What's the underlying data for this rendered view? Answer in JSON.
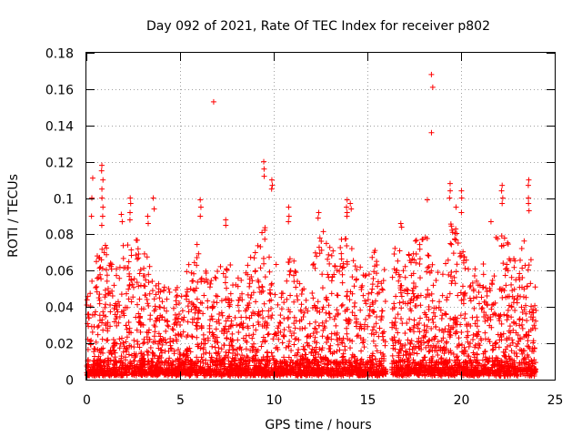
{
  "chart_data": {
    "type": "scatter",
    "title": "Day 092 of 2021, Rate Of TEC Index for receiver p802",
    "xlabel": "GPS time / hours",
    "ylabel": "ROTI / TECUs",
    "xlim": [
      0,
      25
    ],
    "ylim": [
      0,
      0.18
    ],
    "xticks": [
      0,
      5,
      10,
      15,
      20,
      25
    ],
    "xtick_labels": [
      "0",
      "5",
      "10",
      "15",
      "20",
      "25"
    ],
    "yticks": [
      0,
      0.02,
      0.04,
      0.06,
      0.08,
      0.1,
      0.12,
      0.14,
      0.16,
      0.18
    ],
    "ytick_labels": [
      "0",
      "0.02",
      "0.04",
      "0.06",
      "0.08",
      "0.1",
      "0.12",
      "0.14",
      "0.16",
      "0.18"
    ],
    "grid": true,
    "marker": "+",
    "color": "#ff0000",
    "data_gap_hours": [
      16.0,
      16.3
    ],
    "envelope": [
      {
        "t": 0.0,
        "max": 0.045
      },
      {
        "t": 0.5,
        "max": 0.07
      },
      {
        "t": 1.0,
        "max": 0.075
      },
      {
        "t": 1.5,
        "max": 0.06
      },
      {
        "t": 2.0,
        "max": 0.075
      },
      {
        "t": 2.5,
        "max": 0.085
      },
      {
        "t": 3.0,
        "max": 0.075
      },
      {
        "t": 3.5,
        "max": 0.06
      },
      {
        "t": 4.0,
        "max": 0.05
      },
      {
        "t": 4.5,
        "max": 0.06
      },
      {
        "t": 5.0,
        "max": 0.05
      },
      {
        "t": 5.5,
        "max": 0.065
      },
      {
        "t": 6.0,
        "max": 0.08
      },
      {
        "t": 6.5,
        "max": 0.055
      },
      {
        "t": 7.0,
        "max": 0.06
      },
      {
        "t": 7.5,
        "max": 0.07
      },
      {
        "t": 8.0,
        "max": 0.055
      },
      {
        "t": 8.5,
        "max": 0.065
      },
      {
        "t": 9.0,
        "max": 0.07
      },
      {
        "t": 9.5,
        "max": 0.085
      },
      {
        "t": 10.0,
        "max": 0.07
      },
      {
        "t": 10.5,
        "max": 0.055
      },
      {
        "t": 11.0,
        "max": 0.075
      },
      {
        "t": 11.5,
        "max": 0.05
      },
      {
        "t": 12.0,
        "max": 0.06
      },
      {
        "t": 12.5,
        "max": 0.085
      },
      {
        "t": 13.0,
        "max": 0.075
      },
      {
        "t": 13.5,
        "max": 0.075
      },
      {
        "t": 14.0,
        "max": 0.09
      },
      {
        "t": 14.5,
        "max": 0.065
      },
      {
        "t": 15.0,
        "max": 0.06
      },
      {
        "t": 15.5,
        "max": 0.075
      },
      {
        "t": 16.0,
        "max": 0.06
      },
      {
        "t": 16.5,
        "max": 0.075
      },
      {
        "t": 17.0,
        "max": 0.07
      },
      {
        "t": 17.5,
        "max": 0.075
      },
      {
        "t": 18.0,
        "max": 0.085
      },
      {
        "t": 18.5,
        "max": 0.07
      },
      {
        "t": 19.0,
        "max": 0.065
      },
      {
        "t": 19.5,
        "max": 0.09
      },
      {
        "t": 20.0,
        "max": 0.075
      },
      {
        "t": 20.5,
        "max": 0.065
      },
      {
        "t": 21.0,
        "max": 0.06
      },
      {
        "t": 21.5,
        "max": 0.07
      },
      {
        "t": 22.0,
        "max": 0.085
      },
      {
        "t": 22.5,
        "max": 0.075
      },
      {
        "t": 23.0,
        "max": 0.065
      },
      {
        "t": 23.5,
        "max": 0.085
      },
      {
        "t": 24.0,
        "max": 0.05
      }
    ],
    "spikes": [
      {
        "t": 0.85,
        "values": [
          0.118,
          0.115,
          0.11,
          0.105,
          0.1,
          0.095,
          0.09,
          0.085
        ]
      },
      {
        "t": 0.3,
        "values": [
          0.111,
          0.1,
          0.09
        ]
      },
      {
        "t": 1.9,
        "values": [
          0.091,
          0.087
        ]
      },
      {
        "t": 2.35,
        "values": [
          0.1,
          0.097,
          0.092,
          0.088
        ]
      },
      {
        "t": 3.3,
        "values": [
          0.09,
          0.086
        ]
      },
      {
        "t": 3.6,
        "values": [
          0.1,
          0.094
        ]
      },
      {
        "t": 6.1,
        "values": [
          0.099,
          0.095,
          0.09
        ]
      },
      {
        "t": 6.8,
        "values": [
          0.153
        ]
      },
      {
        "t": 7.45,
        "values": [
          0.088,
          0.085
        ]
      },
      {
        "t": 9.5,
        "values": [
          0.12,
          0.116,
          0.112
        ]
      },
      {
        "t": 9.9,
        "values": [
          0.11,
          0.107,
          0.105
        ]
      },
      {
        "t": 10.8,
        "values": [
          0.095,
          0.09,
          0.087
        ]
      },
      {
        "t": 12.4,
        "values": [
          0.092,
          0.089
        ]
      },
      {
        "t": 13.9,
        "values": [
          0.099,
          0.095,
          0.092,
          0.09
        ]
      },
      {
        "t": 14.1,
        "values": [
          0.097,
          0.094
        ]
      },
      {
        "t": 16.8,
        "values": [
          0.086,
          0.084
        ]
      },
      {
        "t": 18.2,
        "values": [
          0.099
        ]
      },
      {
        "t": 18.45,
        "values": [
          0.168,
          0.161,
          0.136
        ]
      },
      {
        "t": 19.4,
        "values": [
          0.108,
          0.104,
          0.1
        ]
      },
      {
        "t": 19.7,
        "values": [
          0.095
        ]
      },
      {
        "t": 20.05,
        "values": [
          0.104,
          0.1,
          0.092
        ]
      },
      {
        "t": 21.6,
        "values": [
          0.087
        ]
      },
      {
        "t": 22.2,
        "values": [
          0.107,
          0.104,
          0.1,
          0.097
        ]
      },
      {
        "t": 23.6,
        "values": [
          0.11,
          0.107,
          0.1,
          0.097,
          0.093
        ]
      }
    ]
  }
}
